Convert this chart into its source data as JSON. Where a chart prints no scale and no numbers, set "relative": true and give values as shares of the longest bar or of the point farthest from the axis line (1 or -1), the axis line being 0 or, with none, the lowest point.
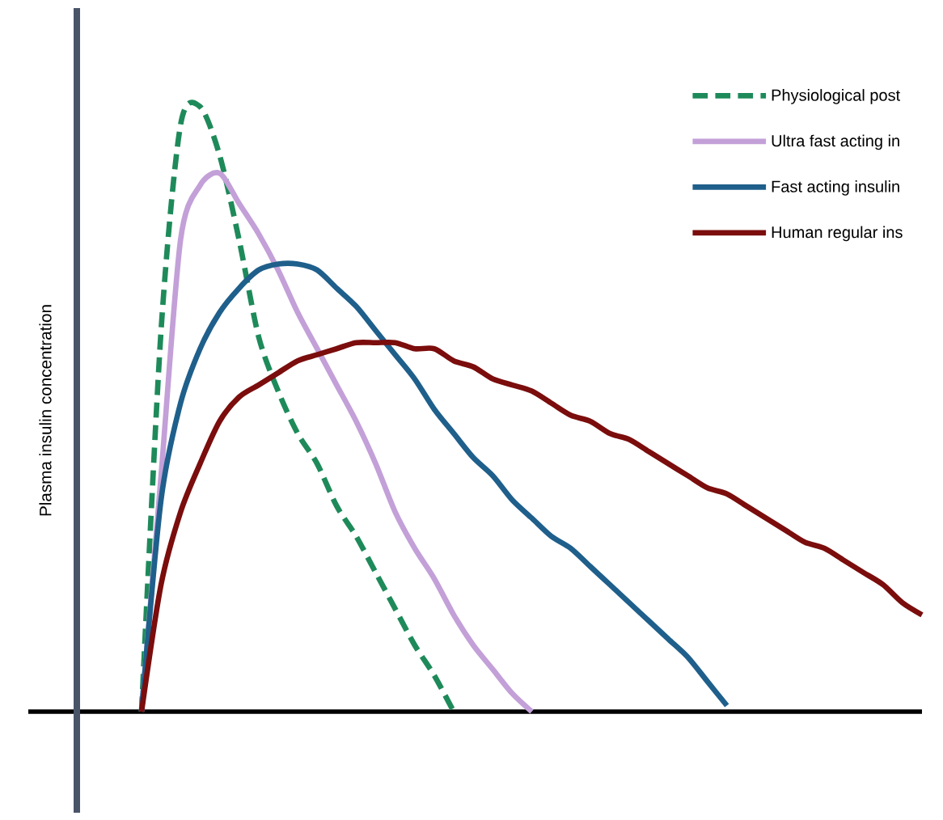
{
  "chart_data": {
    "type": "line",
    "relative": true,
    "ylabel": "Plasma insulin concentration",
    "legend": "top right",
    "marker": "none",
    "categories": [
      null,
      null,
      null,
      null,
      null,
      null,
      null,
      null,
      null,
      null,
      null,
      null,
      null,
      null,
      null,
      null,
      null,
      null,
      null,
      null,
      null,
      null,
      null,
      null,
      null,
      null,
      null,
      null,
      null,
      null,
      null,
      null,
      null,
      null,
      null,
      null,
      null,
      null,
      null,
      null,
      null
    ],
    "series": [
      {
        "name": "Physiological post",
        "color": "#1e8a5a",
        "line_style": "dashed",
        "values": [
          0,
          0.63,
          0.97,
          1,
          0.92,
          0.78,
          0.62,
          0.53,
          0.46,
          0.41,
          0.34,
          0.29,
          0.23,
          0.17,
          0.11,
          0.06,
          0,
          null,
          null,
          null,
          null,
          null,
          null,
          null,
          null,
          null,
          null,
          null,
          null,
          null,
          null,
          null,
          null,
          null,
          null,
          null,
          null,
          null,
          null,
          null,
          null
        ]
      },
      {
        "name": "Ultra fast acting in",
        "color": "#c3a0d8",
        "line_style": "solid",
        "values": [
          0,
          0.39,
          0.78,
          0.87,
          0.89,
          0.84,
          0.79,
          0.73,
          0.66,
          0.6,
          0.54,
          0.48,
          0.41,
          0.33,
          0.27,
          0.22,
          0.16,
          0.11,
          0.07,
          0.03,
          0,
          null,
          null,
          null,
          null,
          null,
          null,
          null,
          null,
          null,
          null,
          null,
          null,
          null,
          null,
          null,
          null,
          null,
          null,
          null,
          null
        ]
      },
      {
        "name": "Fast acting insulin",
        "color": "#1f5f8b",
        "line_style": "solid",
        "values": [
          0,
          0.35,
          0.51,
          0.6,
          0.66,
          0.7,
          0.73,
          0.74,
          0.74,
          0.73,
          0.7,
          0.67,
          0.63,
          0.59,
          0.55,
          0.5,
          0.46,
          0.42,
          0.39,
          0.35,
          0.32,
          0.29,
          0.27,
          0.24,
          0.21,
          0.18,
          0.15,
          0.12,
          0.09,
          0.05,
          0.01,
          null,
          null,
          null,
          null,
          null,
          null,
          null,
          null,
          null,
          null
        ]
      },
      {
        "name": "Human regular ins",
        "color": "#7b0d0d",
        "line_style": "solid",
        "values": [
          0,
          0.21,
          0.33,
          0.41,
          0.48,
          0.52,
          0.54,
          0.56,
          0.58,
          0.59,
          0.6,
          0.61,
          0.61,
          0.61,
          0.6,
          0.6,
          0.58,
          0.57,
          0.55,
          0.54,
          0.53,
          0.51,
          0.49,
          0.48,
          0.46,
          0.45,
          0.43,
          0.41,
          0.39,
          0.37,
          0.36,
          0.34,
          0.32,
          0.3,
          0.28,
          0.27,
          0.25,
          0.23,
          0.21,
          0.18,
          0.16
        ]
      }
    ]
  }
}
